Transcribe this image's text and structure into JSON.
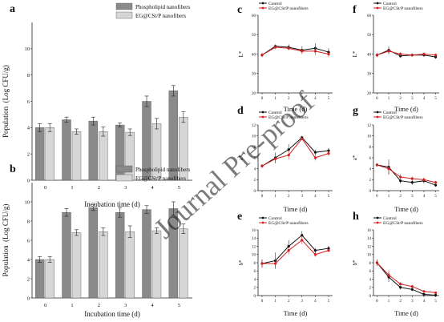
{
  "figure": {
    "watermark": "Journal Pre-proof"
  },
  "chart_data": [
    {
      "id": "a",
      "panel_letter": "a",
      "type": "bar",
      "xlabel": "Incubation time (d)",
      "ylabel": "Population  (Log CFU/g)",
      "categories": [
        "0",
        "1",
        "2",
        "3",
        "4",
        "5"
      ],
      "ylim": [
        0,
        12
      ],
      "yticks": [
        0,
        2,
        4,
        6,
        8,
        10
      ],
      "series": [
        {
          "name": "Phospholipid nanofibers",
          "color": "#8a8a8a",
          "values": [
            4.0,
            4.6,
            4.5,
            4.2,
            6.0,
            6.8
          ],
          "errors": [
            0.3,
            0.2,
            0.3,
            0.15,
            0.4,
            0.4
          ]
        },
        {
          "name": "EG@CSt/P nanofibers",
          "color": "#d6d6d6",
          "values": [
            4.0,
            3.7,
            3.7,
            3.65,
            4.3,
            4.8
          ],
          "errors": [
            0.3,
            0.2,
            0.35,
            0.25,
            0.4,
            0.4
          ]
        }
      ]
    },
    {
      "id": "b",
      "panel_letter": "b",
      "type": "bar",
      "xlabel": "Incubation time (d)",
      "ylabel": "Population  (Log CFU/g)",
      "categories": [
        "0",
        "1",
        "2",
        "3",
        "4",
        "5"
      ],
      "ylim": [
        0,
        12
      ],
      "yticks": [
        0,
        2,
        4,
        6,
        8,
        10
      ],
      "series": [
        {
          "name": "Phospholipid nanofibers",
          "color": "#8a8a8a",
          "values": [
            4.0,
            8.9,
            9.4,
            8.9,
            9.2,
            9.3
          ],
          "errors": [
            0.3,
            0.4,
            0.3,
            0.5,
            0.4,
            0.7
          ]
        },
        {
          "name": "EG@CSt/P nanofibers",
          "color": "#d6d6d6",
          "values": [
            4.0,
            6.8,
            6.9,
            6.9,
            7.0,
            7.2
          ],
          "errors": [
            0.3,
            0.3,
            0.4,
            0.6,
            0.3,
            0.5
          ]
        }
      ]
    },
    {
      "id": "c",
      "panel_letter": "c",
      "type": "line",
      "xlabel": "Time (d)",
      "ylabel": "L*",
      "x": [
        0,
        1,
        2,
        3,
        4,
        5
      ],
      "xlim": [
        -0.3,
        5.3
      ],
      "ylim": [
        20,
        60
      ],
      "yticks": [
        20,
        30,
        40,
        50,
        60
      ],
      "series": [
        {
          "name": "Control",
          "color": "#111111",
          "values": [
            39.5,
            44,
            43.5,
            42,
            43,
            41
          ],
          "errors": [
            1,
            1,
            1.5,
            2,
            2.5,
            2
          ]
        },
        {
          "name": "EG@CSt/P nanofibers",
          "color": "#d42020",
          "values": [
            39.5,
            43.5,
            43,
            41.5,
            41.5,
            40
          ],
          "errors": [
            1,
            1,
            1,
            1.5,
            2,
            1.5
          ]
        }
      ]
    },
    {
      "id": "f",
      "panel_letter": "f",
      "type": "line",
      "xlabel": "Time (d)",
      "ylabel": "L*",
      "x": [
        0,
        1,
        2,
        3,
        4,
        5
      ],
      "xlim": [
        -0.3,
        5.3
      ],
      "ylim": [
        20,
        60
      ],
      "yticks": [
        20,
        30,
        40,
        50,
        60
      ],
      "series": [
        {
          "name": "Control",
          "color": "#111111",
          "values": [
            39.5,
            42,
            39,
            39.5,
            39.5,
            38.5
          ],
          "errors": [
            1,
            2,
            1,
            0.8,
            0.8,
            1
          ]
        },
        {
          "name": "EG@CSt/P nanofibers",
          "color": "#d42020",
          "values": [
            39.5,
            41.5,
            40,
            39.5,
            40,
            39.5
          ],
          "errors": [
            1,
            1.5,
            1,
            0.8,
            0.8,
            0.8
          ]
        }
      ]
    },
    {
      "id": "d",
      "panel_letter": "d",
      "type": "line",
      "xlabel": "Time (d)",
      "ylabel": "a*",
      "x": [
        0,
        1,
        2,
        3,
        4,
        5
      ],
      "xlim": [
        -0.3,
        5.3
      ],
      "ylim": [
        0,
        12
      ],
      "yticks": [
        0,
        2,
        4,
        6,
        8,
        10,
        12
      ],
      "series": [
        {
          "name": "Control",
          "color": "#111111",
          "values": [
            4.5,
            6.0,
            7.5,
            9.7,
            7.0,
            7.3
          ],
          "errors": [
            0.3,
            1.0,
            1.0,
            0.3,
            0.5,
            0.5
          ]
        },
        {
          "name": "EG@CSt/P nanofibers",
          "color": "#d42020",
          "values": [
            4.5,
            5.8,
            6.5,
            9.5,
            6.0,
            6.8
          ],
          "errors": [
            0.3,
            0.6,
            0.8,
            0.3,
            0.5,
            0.5
          ]
        }
      ]
    },
    {
      "id": "g",
      "panel_letter": "g",
      "type": "line",
      "xlabel": "Time (d)",
      "ylabel": "a*",
      "x": [
        0,
        1,
        2,
        3,
        4,
        5
      ],
      "xlim": [
        -0.3,
        5.3
      ],
      "ylim": [
        0,
        12
      ],
      "yticks": [
        0,
        2,
        4,
        6,
        8,
        10,
        12
      ],
      "series": [
        {
          "name": "Control",
          "color": "#111111",
          "values": [
            4.7,
            4.3,
            1.8,
            1.5,
            1.8,
            1.0
          ],
          "errors": [
            0.3,
            1.4,
            0.5,
            0.4,
            0.5,
            0.3
          ]
        },
        {
          "name": "EG@CSt/P nanofibers",
          "color": "#d42020",
          "values": [
            4.7,
            4.0,
            2.5,
            2.2,
            2.0,
            1.5
          ],
          "errors": [
            0.3,
            1.0,
            0.5,
            0.4,
            0.4,
            0.3
          ]
        }
      ]
    },
    {
      "id": "e",
      "panel_letter": "e",
      "type": "line",
      "xlabel": "Time (d)",
      "ylabel": "b*",
      "x": [
        0,
        1,
        2,
        3,
        4,
        5
      ],
      "xlim": [
        -0.3,
        5.3
      ],
      "ylim": [
        0,
        16
      ],
      "yticks": [
        0,
        2,
        4,
        6,
        8,
        10,
        12,
        14,
        16
      ],
      "series": [
        {
          "name": "Control",
          "color": "#111111",
          "values": [
            7.8,
            8.5,
            12,
            14.7,
            11,
            11.5
          ],
          "errors": [
            1,
            2,
            1.5,
            1,
            0.6,
            0.6
          ]
        },
        {
          "name": "EG@CSt/P nanofibers",
          "color": "#d42020",
          "values": [
            7.8,
            7.8,
            11,
            13.5,
            10,
            11
          ],
          "errors": [
            1,
            1,
            1,
            1,
            0.6,
            0.5
          ]
        }
      ]
    },
    {
      "id": "h",
      "panel_letter": "h",
      "type": "line",
      "xlabel": "Time (d)",
      "ylabel": "b*",
      "x": [
        0,
        1,
        2,
        3,
        4,
        5
      ],
      "xlim": [
        -0.3,
        5.3
      ],
      "ylim": [
        0,
        16
      ],
      "yticks": [
        0,
        2,
        4,
        6,
        8,
        10,
        12,
        14,
        16
      ],
      "series": [
        {
          "name": "Control",
          "color": "#111111",
          "values": [
            8,
            4.5,
            2,
            1.5,
            0.3,
            0.1
          ],
          "errors": [
            0.8,
            1.2,
            0.5,
            0.4,
            0.2,
            0.2
          ]
        },
        {
          "name": "EG@CSt/P nanofibers",
          "color": "#d42020",
          "values": [
            8,
            5,
            2.8,
            2.2,
            1.0,
            0.7
          ],
          "errors": [
            0.8,
            1.2,
            0.5,
            0.4,
            0.3,
            0.3
          ]
        }
      ]
    }
  ]
}
